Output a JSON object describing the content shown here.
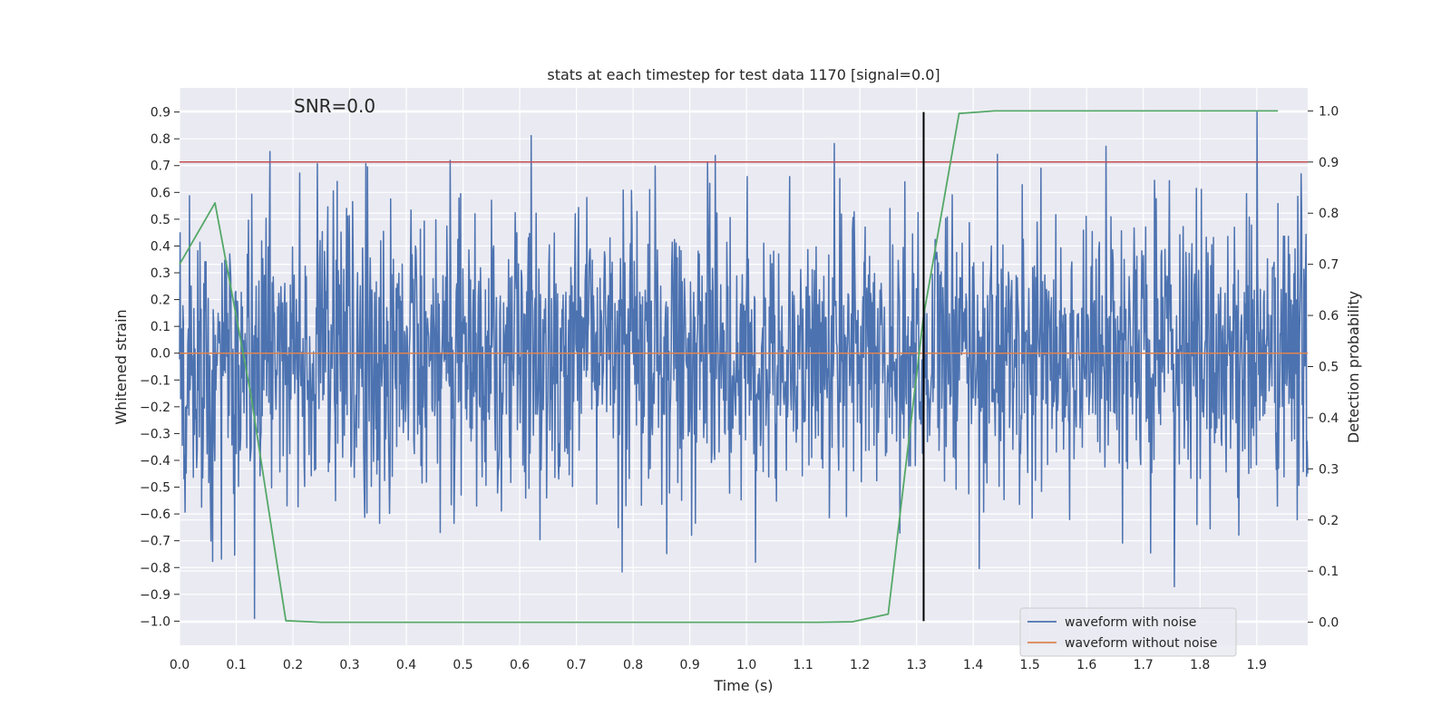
{
  "chart_data": {
    "type": "line",
    "title": "stats at each timestep for test data 1170 [signal=0.0]",
    "annotation": "SNR=0.0",
    "xlabel": "Time (s)",
    "ylabel_left": "Whitened strain",
    "ylabel_right": "Detection probability",
    "xlim": [
      0.0,
      1.99
    ],
    "ylim_left": [
      -1.09,
      0.99
    ],
    "ylim_right": [
      -0.045,
      1.045
    ],
    "x_ticks": [
      0.0,
      0.1,
      0.2,
      0.3,
      0.4,
      0.5,
      0.6,
      0.7,
      0.8,
      0.9,
      1.0,
      1.1,
      1.2,
      1.3,
      1.4,
      1.5,
      1.6,
      1.7,
      1.8,
      1.9
    ],
    "x_tick_labels": [
      "0.0",
      "0.1",
      "0.2",
      "0.3",
      "0.4",
      "0.5",
      "0.6",
      "0.7",
      "0.8",
      "0.9",
      "1.0",
      "1.1",
      "1.2",
      "1.3",
      "1.4",
      "1.5",
      "1.6",
      "1.7",
      "1.8",
      "1.9"
    ],
    "y_left_ticks": [
      0.9,
      0.8,
      0.7,
      0.6,
      0.5,
      0.4,
      0.3,
      0.2,
      0.1,
      0.0,
      -0.1,
      -0.2,
      -0.3,
      -0.4,
      -0.5,
      -0.6,
      -0.7,
      -0.8,
      -0.9,
      -1.0
    ],
    "y_left_tick_labels": [
      "0.9",
      "0.8",
      "0.7",
      "0.6",
      "0.5",
      "0.4",
      "0.3",
      "0.2",
      "0.1",
      "0.0",
      "−0.1",
      "−0.2",
      "−0.3",
      "−0.4",
      "−0.5",
      "−0.6",
      "−0.7",
      "−0.8",
      "−0.9",
      "−1.0"
    ],
    "y_right_ticks": [
      1.0,
      0.9,
      0.8,
      0.7,
      0.6,
      0.5,
      0.4,
      0.3,
      0.2,
      0.1,
      0.0
    ],
    "y_right_tick_labels": [
      "1.0",
      "0.9",
      "0.8",
      "0.7",
      "0.6",
      "0.5",
      "0.4",
      "0.3",
      "0.2",
      "0.1",
      "0.0"
    ],
    "grid": true,
    "legend_position": "bottom-right",
    "colors": {
      "background": "#eaeaf2",
      "grid": "#ffffff",
      "noise": "#4c72b0",
      "clean": "#dd8452",
      "probability": "#55a868",
      "threshold": "#c44e52",
      "marker": "#000000"
    },
    "series": [
      {
        "name": "waveform with noise",
        "axis": "left",
        "generated": true,
        "x_start": 0.0,
        "x_end": 1.99,
        "n_points": 2048,
        "mean": 0.0,
        "std": 0.27,
        "ymin": -0.99,
        "ymax": 0.9
      },
      {
        "name": "waveform without noise",
        "axis": "left",
        "x": [
          0.0,
          1.99
        ],
        "y": [
          0.0,
          0.0
        ]
      },
      {
        "name": "",
        "axis": "right",
        "x": [
          0.0,
          0.0625,
          0.125,
          0.1875,
          0.25,
          0.3125,
          0.375,
          0.4375,
          0.5,
          0.5625,
          0.625,
          0.6875,
          0.75,
          0.8125,
          0.875,
          0.9375,
          1.0,
          1.0625,
          1.125,
          1.1875,
          1.25,
          1.3125,
          1.375,
          1.4375,
          1.5,
          1.5625,
          1.625,
          1.6875,
          1.75,
          1.8125,
          1.875,
          1.9375
        ],
        "y": [
          0.7,
          0.82,
          0.45,
          0.003,
          0.0,
          0.0,
          0.0,
          0.0,
          0.0,
          0.0,
          0.0,
          0.0,
          0.0,
          0.0,
          0.0,
          0.0,
          0.0,
          0.0,
          0.0,
          0.001,
          0.016,
          0.6,
          0.995,
          1.0,
          1.0,
          1.0,
          1.0,
          1.0,
          1.0,
          1.0,
          1.0,
          1.0
        ]
      }
    ],
    "threshold_line": {
      "axis": "right",
      "y": 0.9
    },
    "marker_line": {
      "x": 1.3125,
      "y_from": -1.0,
      "y_to": 0.9
    }
  }
}
